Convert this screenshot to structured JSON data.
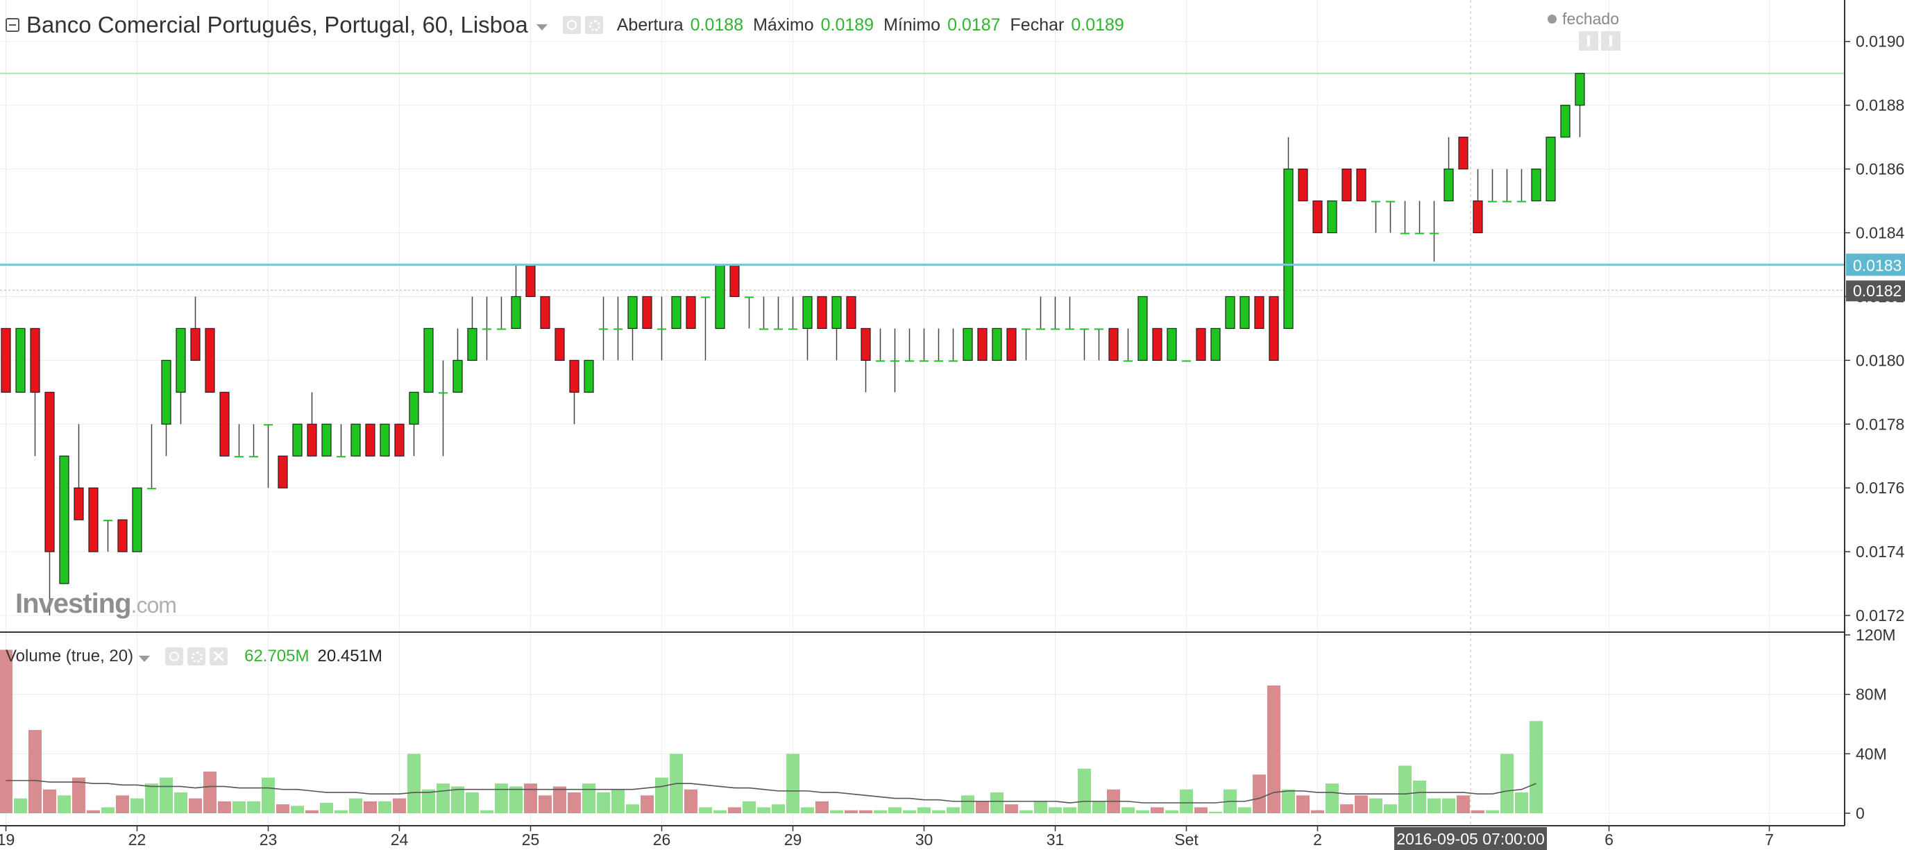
{
  "header": {
    "title": "Banco Comercial Português, Portugal, 60, Lisboa",
    "open_label": "Abertura",
    "open_value": "0.0188",
    "high_label": "Máximo",
    "high_value": "0.0189",
    "low_label": "Mínimo",
    "low_value": "0.0187",
    "close_label": "Fechar",
    "close_value": "0.0189",
    "status": "fechado"
  },
  "watermark": {
    "brand": "Investing",
    "domain": ".com"
  },
  "volume_legend": {
    "title": "Volume (true, 20)",
    "value1": "62.705M",
    "value2": "20.451M"
  },
  "colors": {
    "up": "#1ec51e",
    "down": "#e8141c",
    "vol_up": "#8fdf8f",
    "vol_down": "#d98c90",
    "hline": "#7fc6d8",
    "price_label": "#5fb8d2",
    "dark_label": "#555555"
  },
  "icons": {
    "collapse": "minus-square-icon",
    "visibility": "eye-icon",
    "settings": "gear-icon",
    "remove": "close-icon"
  },
  "chart_data": [
    {
      "type": "candlestick",
      "yaxis": {
        "min": 0.01715,
        "max": 0.01913,
        "ticks": [
          "0.0172",
          "0.0174",
          "0.0176",
          "0.0178",
          "0.0180",
          "0.0182",
          "0.0184",
          "0.0186",
          "0.0188",
          "0.0190"
        ]
      },
      "xaxis": {
        "labels": [
          {
            "label": "19",
            "bar": 0
          },
          {
            "label": "22",
            "bar": 9
          },
          {
            "label": "23",
            "bar": 18
          },
          {
            "label": "24",
            "bar": 27
          },
          {
            "label": "25",
            "bar": 36
          },
          {
            "label": "26",
            "bar": 45
          },
          {
            "label": "29",
            "bar": 54
          },
          {
            "label": "30",
            "bar": 63
          },
          {
            "label": "31",
            "bar": 72
          },
          {
            "label": "Set",
            "bar": 81
          },
          {
            "label": "2",
            "bar": 90
          },
          {
            "label": "6",
            "bar": 110
          },
          {
            "label": "7",
            "bar": 121
          }
        ],
        "crosshair_label": "2016-09-05 07:00:00",
        "crosshair_bar": 100.5
      },
      "horizontal_line": {
        "value": 0.0183,
        "label": "0.0183"
      },
      "marker_label": {
        "value": 0.01822,
        "label": "0.0182"
      },
      "last_price": 0.0189,
      "candles": [
        [
          0.0181,
          0.0181,
          0.0179,
          0.0179
        ],
        [
          0.0179,
          0.0181,
          0.0179,
          0.0181
        ],
        [
          0.0181,
          0.0181,
          0.0177,
          0.0179
        ],
        [
          0.0179,
          0.0179,
          0.0172,
          0.0174
        ],
        [
          0.0173,
          0.0177,
          0.0173,
          0.0177
        ],
        [
          0.0176,
          0.0178,
          0.0175,
          0.0175
        ],
        [
          0.0176,
          0.0176,
          0.0174,
          0.0174
        ],
        [
          0.0175,
          0.0175,
          0.0174,
          0.0175
        ],
        [
          0.0175,
          0.0175,
          0.0174,
          0.0174
        ],
        [
          0.0174,
          0.0176,
          0.0174,
          0.0176
        ],
        [
          0.0176,
          0.0178,
          0.0176,
          0.0176
        ],
        [
          0.0178,
          0.018,
          0.0177,
          0.018
        ],
        [
          0.0179,
          0.0181,
          0.0178,
          0.0181
        ],
        [
          0.0181,
          0.0182,
          0.018,
          0.018
        ],
        [
          0.0181,
          0.0181,
          0.0179,
          0.0179
        ],
        [
          0.0179,
          0.0179,
          0.0177,
          0.0177
        ],
        [
          0.0177,
          0.0178,
          0.0177,
          0.0177
        ],
        [
          0.0177,
          0.0178,
          0.0177,
          0.0177
        ],
        [
          0.0178,
          0.0178,
          0.0176,
          0.0178
        ],
        [
          0.0177,
          0.0177,
          0.0176,
          0.0176
        ],
        [
          0.0177,
          0.0178,
          0.0177,
          0.0178
        ],
        [
          0.0178,
          0.0179,
          0.0177,
          0.0177
        ],
        [
          0.0177,
          0.0178,
          0.0177,
          0.0178
        ],
        [
          0.0177,
          0.0178,
          0.0177,
          0.0177
        ],
        [
          0.0177,
          0.0178,
          0.0177,
          0.0178
        ],
        [
          0.0178,
          0.0178,
          0.0177,
          0.0177
        ],
        [
          0.0177,
          0.0178,
          0.0177,
          0.0178
        ],
        [
          0.0178,
          0.0178,
          0.0177,
          0.0177
        ],
        [
          0.0178,
          0.0179,
          0.0177,
          0.0179
        ],
        [
          0.0179,
          0.0181,
          0.0179,
          0.0181
        ],
        [
          0.0179,
          0.018,
          0.0177,
          0.0179
        ],
        [
          0.0179,
          0.0181,
          0.0179,
          0.018
        ],
        [
          0.018,
          0.0182,
          0.018,
          0.0181
        ],
        [
          0.0181,
          0.0182,
          0.018,
          0.0181
        ],
        [
          0.0181,
          0.0182,
          0.0181,
          0.0181
        ],
        [
          0.0181,
          0.0183,
          0.0181,
          0.0182
        ],
        [
          0.0183,
          0.0183,
          0.0182,
          0.0182
        ],
        [
          0.0182,
          0.0182,
          0.0181,
          0.0181
        ],
        [
          0.0181,
          0.0181,
          0.018,
          0.018
        ],
        [
          0.018,
          0.018,
          0.0178,
          0.0179
        ],
        [
          0.0179,
          0.018,
          0.0179,
          0.018
        ],
        [
          0.0181,
          0.0182,
          0.018,
          0.0181
        ],
        [
          0.0181,
          0.0182,
          0.018,
          0.0181
        ],
        [
          0.0181,
          0.0182,
          0.018,
          0.0182
        ],
        [
          0.0182,
          0.0182,
          0.0181,
          0.0181
        ],
        [
          0.0181,
          0.0182,
          0.018,
          0.0181
        ],
        [
          0.0181,
          0.0182,
          0.0181,
          0.0182
        ],
        [
          0.0182,
          0.0182,
          0.0181,
          0.0181
        ],
        [
          0.0182,
          0.0182,
          0.018,
          0.0182
        ],
        [
          0.0181,
          0.0183,
          0.0181,
          0.0183
        ],
        [
          0.0183,
          0.0183,
          0.0182,
          0.0182
        ],
        [
          0.0182,
          0.0182,
          0.0181,
          0.0182
        ],
        [
          0.0181,
          0.0182,
          0.0181,
          0.0181
        ],
        [
          0.0181,
          0.0182,
          0.0181,
          0.0181
        ],
        [
          0.0181,
          0.0182,
          0.0181,
          0.0181
        ],
        [
          0.0181,
          0.0182,
          0.018,
          0.0182
        ],
        [
          0.0182,
          0.0182,
          0.0181,
          0.0181
        ],
        [
          0.0181,
          0.0182,
          0.018,
          0.0182
        ],
        [
          0.0182,
          0.0182,
          0.0181,
          0.0181
        ],
        [
          0.0181,
          0.0181,
          0.0179,
          0.018
        ],
        [
          0.018,
          0.0181,
          0.018,
          0.018
        ],
        [
          0.018,
          0.0181,
          0.0179,
          0.018
        ],
        [
          0.018,
          0.0181,
          0.018,
          0.018
        ],
        [
          0.018,
          0.0181,
          0.018,
          0.018
        ],
        [
          0.018,
          0.0181,
          0.018,
          0.018
        ],
        [
          0.018,
          0.0181,
          0.018,
          0.018
        ],
        [
          0.018,
          0.0181,
          0.018,
          0.0181
        ],
        [
          0.0181,
          0.0181,
          0.018,
          0.018
        ],
        [
          0.018,
          0.0181,
          0.018,
          0.0181
        ],
        [
          0.0181,
          0.0181,
          0.018,
          0.018
        ],
        [
          0.0181,
          0.0181,
          0.018,
          0.0181
        ],
        [
          0.0181,
          0.0182,
          0.0181,
          0.0181
        ],
        [
          0.0181,
          0.0182,
          0.0181,
          0.0181
        ],
        [
          0.0181,
          0.0182,
          0.0181,
          0.0181
        ],
        [
          0.0181,
          0.0181,
          0.018,
          0.0181
        ],
        [
          0.0181,
          0.0181,
          0.018,
          0.0181
        ],
        [
          0.0181,
          0.0181,
          0.018,
          0.018
        ],
        [
          0.018,
          0.0181,
          0.018,
          0.018
        ],
        [
          0.018,
          0.0182,
          0.018,
          0.0182
        ],
        [
          0.0181,
          0.0181,
          0.018,
          0.018
        ],
        [
          0.018,
          0.0181,
          0.018,
          0.0181
        ],
        [
          0.018,
          0.018,
          0.018,
          0.018
        ],
        [
          0.0181,
          0.0181,
          0.018,
          0.018
        ],
        [
          0.018,
          0.0181,
          0.018,
          0.0181
        ],
        [
          0.0181,
          0.0182,
          0.0181,
          0.0182
        ],
        [
          0.0181,
          0.0182,
          0.0181,
          0.0182
        ],
        [
          0.0182,
          0.0182,
          0.0181,
          0.0181
        ],
        [
          0.0182,
          0.0182,
          0.018,
          0.018
        ],
        [
          0.0181,
          0.0187,
          0.0181,
          0.0186
        ],
        [
          0.0186,
          0.0186,
          0.0185,
          0.0185
        ],
        [
          0.0185,
          0.0185,
          0.0184,
          0.0184
        ],
        [
          0.0184,
          0.0185,
          0.0184,
          0.0185
        ],
        [
          0.0186,
          0.0186,
          0.0185,
          0.0185
        ],
        [
          0.0186,
          0.0186,
          0.0185,
          0.0185
        ],
        [
          0.0185,
          0.0185,
          0.0184,
          0.0185
        ],
        [
          0.0185,
          0.0185,
          0.0184,
          0.0185
        ],
        [
          0.0184,
          0.0185,
          0.0184,
          0.0184
        ],
        [
          0.0184,
          0.0185,
          0.0184,
          0.0184
        ],
        [
          0.0184,
          0.0185,
          0.01831,
          0.0184
        ],
        [
          0.0185,
          0.0187,
          0.0185,
          0.0186
        ],
        [
          0.0187,
          0.0187,
          0.0186,
          0.0186
        ],
        [
          0.0185,
          0.0186,
          0.0184,
          0.0184
        ],
        [
          0.0185,
          0.0186,
          0.0185,
          0.0185
        ],
        [
          0.0185,
          0.0186,
          0.0185,
          0.0185
        ],
        [
          0.0185,
          0.0186,
          0.0185,
          0.0185
        ],
        [
          0.0185,
          0.0186,
          0.0185,
          0.0186
        ],
        [
          0.0185,
          0.0187,
          0.0185,
          0.0187
        ],
        [
          0.0187,
          0.0188,
          0.0187,
          0.0188
        ],
        [
          0.0188,
          0.0189,
          0.0187,
          0.0189
        ]
      ]
    },
    {
      "type": "bar",
      "title": "Volume (true, 20)",
      "yaxis": {
        "min": 0,
        "max": 120,
        "ticks": [
          "0",
          "40M",
          "80M",
          "120M"
        ],
        "unit": "M"
      },
      "volumes": [
        110,
        10,
        56,
        16,
        12,
        24,
        2,
        4,
        12,
        10,
        20,
        24,
        14,
        10,
        28,
        8,
        8,
        8,
        24,
        6,
        5,
        2,
        7,
        2,
        10,
        8,
        8,
        10,
        40,
        16,
        20,
        18,
        14,
        2,
        20,
        18,
        20,
        12,
        18,
        14,
        20,
        14,
        16,
        6,
        12,
        24,
        40,
        16,
        4,
        2,
        4,
        8,
        4,
        6,
        40,
        4,
        8,
        2,
        2,
        2,
        2,
        4,
        2,
        4,
        2,
        4,
        12,
        8,
        14,
        6,
        2,
        8,
        4,
        4,
        30,
        8,
        16,
        4,
        2,
        4,
        2,
        16,
        4,
        1,
        16,
        4,
        26,
        86,
        16,
        12,
        2,
        20,
        6,
        12,
        10,
        6,
        32,
        22,
        10,
        10,
        12,
        2,
        2,
        40,
        14,
        62
      ],
      "ma": [
        22,
        22,
        22,
        21,
        21,
        21,
        20,
        20,
        19,
        19,
        18,
        18,
        18,
        17,
        18,
        18,
        17,
        17,
        17,
        16,
        16,
        15,
        14,
        14,
        14,
        13,
        13,
        13,
        14,
        14,
        15,
        16,
        16,
        16,
        16,
        16,
        16,
        16,
        16,
        16,
        16,
        16,
        16,
        16,
        17,
        18,
        20,
        20,
        19,
        18,
        17,
        17,
        16,
        15,
        15,
        15,
        14,
        14,
        13,
        12,
        11,
        10,
        10,
        9,
        9,
        8,
        8,
        8,
        8,
        8,
        8,
        8,
        8,
        7,
        8,
        8,
        8,
        8,
        7,
        7,
        7,
        7,
        7,
        7,
        8,
        8,
        10,
        14,
        15,
        15,
        14,
        14,
        13,
        13,
        13,
        13,
        13,
        14,
        14,
        14,
        14,
        13,
        13,
        15,
        16,
        20
      ]
    }
  ]
}
